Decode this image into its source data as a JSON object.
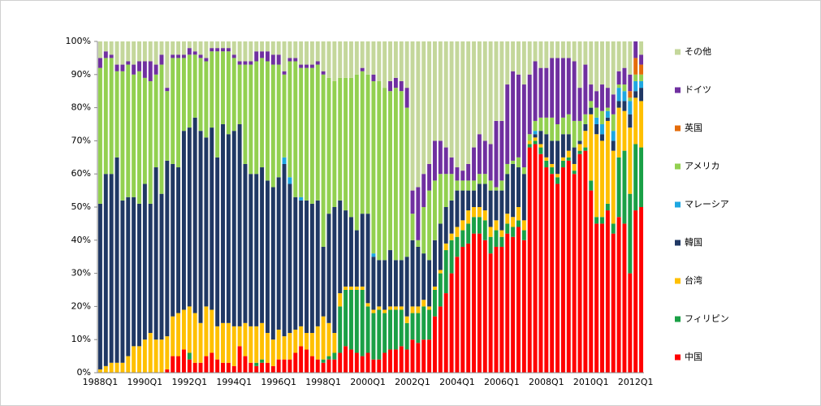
{
  "chart_data": {
    "type": "stacked_bar",
    "categories": [
      "1988Q1",
      null,
      null,
      null,
      null,
      null,
      null,
      null,
      "1990Q1",
      null,
      null,
      null,
      null,
      null,
      null,
      null,
      "1992Q1",
      null,
      null,
      null,
      null,
      null,
      null,
      null,
      "1994Q1",
      null,
      null,
      null,
      null,
      null,
      null,
      null,
      "1996Q1",
      null,
      null,
      null,
      null,
      null,
      null,
      null,
      "1998Q1",
      null,
      null,
      null,
      null,
      null,
      null,
      null,
      "2000Q1",
      null,
      null,
      null,
      null,
      null,
      null,
      null,
      "2002Q1",
      null,
      null,
      null,
      null,
      null,
      null,
      null,
      "2004Q1",
      null,
      null,
      null,
      null,
      null,
      null,
      null,
      "2006Q1",
      null,
      null,
      null,
      null,
      null,
      null,
      null,
      "2008Q1",
      null,
      null,
      null,
      null,
      null,
      null,
      null,
      "2010Q1",
      null,
      null,
      null,
      null,
      null,
      null,
      null,
      "2012Q1",
      null
    ],
    "series": [
      {
        "name": "中国",
        "color": "#ff0000",
        "values": [
          0,
          0,
          0,
          0,
          0,
          0,
          0,
          0,
          0,
          0,
          0,
          0,
          1,
          5,
          5,
          7,
          4,
          3,
          3,
          5,
          6,
          4,
          3,
          3,
          2,
          8,
          5,
          3,
          2,
          3,
          3,
          2,
          4,
          4,
          4,
          6,
          8,
          7,
          5,
          4,
          3,
          4,
          4,
          6,
          8,
          7,
          6,
          5,
          6,
          4,
          4,
          6,
          7,
          7,
          8,
          7,
          10,
          9,
          10,
          10,
          17,
          20,
          24,
          30,
          35,
          38,
          39,
          42,
          42,
          40,
          36,
          38,
          38,
          42,
          41,
          44,
          40,
          68,
          69,
          66,
          62,
          60,
          57,
          62,
          64,
          60,
          66,
          67,
          55,
          45,
          45,
          49,
          42,
          47,
          45,
          30,
          49,
          50
        ]
      },
      {
        "name": "フィリピン",
        "color": "#1aa046",
        "values": [
          0,
          0,
          0,
          0,
          0,
          0,
          0,
          0,
          0,
          0,
          0,
          0,
          0,
          0,
          0,
          0,
          2,
          0,
          0,
          0,
          0,
          0,
          0,
          0,
          0,
          0,
          0,
          0,
          1,
          1,
          0,
          0,
          0,
          0,
          0,
          0,
          0,
          0,
          0,
          0,
          1,
          1,
          2,
          14,
          17,
          18,
          19,
          20,
          14,
          14,
          15,
          12,
          12,
          12,
          11,
          8,
          8,
          9,
          10,
          9,
          8,
          10,
          13,
          10,
          6,
          5,
          6,
          5,
          5,
          6,
          5,
          5,
          3,
          3,
          3,
          2,
          3,
          1,
          1,
          2,
          2,
          2,
          2,
          2,
          1,
          1,
          1,
          1,
          3,
          2,
          2,
          2,
          3,
          18,
          22,
          24,
          20,
          18
        ]
      },
      {
        "name": "台湾",
        "color": "#ffc000",
        "values": [
          1,
          2,
          3,
          3,
          3,
          5,
          8,
          8,
          10,
          12,
          10,
          10,
          10,
          12,
          13,
          12,
          14,
          15,
          12,
          15,
          13,
          10,
          12,
          12,
          12,
          6,
          10,
          11,
          11,
          11,
          9,
          8,
          9,
          7,
          8,
          7,
          6,
          5,
          7,
          10,
          13,
          10,
          6,
          4,
          1,
          1,
          1,
          1,
          1,
          1,
          1,
          1,
          1,
          1,
          1,
          2,
          2,
          2,
          2,
          1,
          1,
          1,
          2,
          2,
          3,
          3,
          4,
          3,
          3,
          3,
          3,
          3,
          2,
          3,
          3,
          4,
          3,
          1,
          1,
          1,
          1,
          1,
          1,
          1,
          2,
          2,
          2,
          5,
          20,
          25,
          23,
          25,
          22,
          15,
          12,
          20,
          14,
          14
        ]
      },
      {
        "name": "韓国",
        "color": "#203864",
        "values": [
          50,
          58,
          57,
          62,
          49,
          48,
          45,
          43,
          47,
          39,
          52,
          44,
          53,
          46,
          44,
          54,
          54,
          59,
          58,
          51,
          55,
          51,
          60,
          57,
          59,
          61,
          48,
          46,
          46,
          47,
          46,
          46,
          46,
          52,
          45,
          40,
          38,
          40,
          39,
          38,
          21,
          33,
          38,
          28,
          23,
          21,
          17,
          22,
          27,
          16,
          14,
          15,
          17,
          14,
          14,
          18,
          20,
          18,
          14,
          14,
          14,
          14,
          11,
          10,
          11,
          9,
          6,
          5,
          7,
          8,
          11,
          9,
          12,
          12,
          16,
          12,
          14,
          0,
          1,
          4,
          7,
          7,
          10,
          7,
          5,
          5,
          1,
          2,
          2,
          3,
          2,
          1,
          3,
          2,
          3,
          4,
          2,
          4
        ]
      },
      {
        "name": "マレーシア",
        "color": "#1ea7e1",
        "values": [
          0,
          0,
          0,
          0,
          0,
          0,
          0,
          0,
          0,
          0,
          0,
          0,
          0,
          0,
          0,
          0,
          0,
          0,
          0,
          0,
          0,
          0,
          0,
          0,
          0,
          0,
          0,
          0,
          0,
          0,
          0,
          0,
          0,
          2,
          2,
          0,
          1,
          0,
          0,
          0,
          0,
          0,
          0,
          0,
          0,
          0,
          0,
          0,
          0,
          1,
          0,
          0,
          0,
          0,
          0,
          0,
          0,
          0,
          0,
          0,
          0,
          0,
          0,
          0,
          0,
          0,
          0,
          0,
          0,
          0,
          0,
          0,
          0,
          0,
          0,
          0,
          0,
          0,
          1,
          0,
          0,
          0,
          0,
          0,
          0,
          0,
          0,
          0,
          0,
          2,
          3,
          2,
          3,
          4,
          3,
          4,
          3,
          2
        ]
      },
      {
        "name": "アメリカ",
        "color": "#92d050",
        "values": [
          41,
          35,
          35,
          26,
          39,
          40,
          37,
          40,
          32,
          37,
          28,
          39,
          21,
          32,
          33,
          22,
          22,
          19,
          22,
          23,
          23,
          32,
          22,
          25,
          22,
          18,
          30,
          33,
          34,
          33,
          36,
          37,
          34,
          25,
          35,
          41,
          39,
          40,
          41,
          41,
          52,
          41,
          38,
          37,
          40,
          42,
          47,
          43,
          42,
          52,
          54,
          52,
          48,
          52,
          51,
          45,
          8,
          2,
          14,
          21,
          18,
          15,
          10,
          8,
          3,
          3,
          3,
          3,
          3,
          3,
          3,
          1,
          3,
          3,
          1,
          3,
          2,
          2,
          3,
          4,
          5,
          7,
          5,
          5,
          6,
          8,
          6,
          3,
          2,
          3,
          4,
          1,
          5,
          1,
          2,
          1,
          2,
          2
        ]
      },
      {
        "name": "英国",
        "color": "#e46c0a",
        "values": [
          0,
          0,
          0,
          0,
          0,
          0,
          0,
          0,
          0,
          0,
          0,
          0,
          0,
          0,
          0,
          0,
          0,
          0,
          0,
          0,
          0,
          0,
          0,
          0,
          0,
          0,
          0,
          0,
          0,
          0,
          0,
          0,
          0,
          0,
          0,
          0,
          0,
          0,
          0,
          0,
          0,
          0,
          0,
          0,
          0,
          0,
          0,
          0,
          0,
          0,
          0,
          0,
          0,
          0,
          0,
          0,
          0,
          0,
          0,
          0,
          0,
          0,
          0,
          0,
          0,
          0,
          0,
          0,
          0,
          0,
          0,
          0,
          0,
          0,
          0,
          0,
          0,
          0,
          0,
          0,
          0,
          0,
          0,
          0,
          0,
          0,
          0,
          0,
          0,
          0,
          0,
          0,
          0,
          0,
          0,
          2,
          5,
          3
        ]
      },
      {
        "name": "ドイツ",
        "color": "#7030a0",
        "values": [
          3,
          2,
          1,
          2,
          2,
          1,
          3,
          3,
          5,
          6,
          3,
          3,
          1,
          1,
          1,
          1,
          2,
          1,
          1,
          1,
          1,
          1,
          1,
          1,
          1,
          1,
          1,
          1,
          3,
          2,
          3,
          3,
          3,
          1,
          1,
          1,
          1,
          1,
          1,
          1,
          1,
          0,
          0,
          0,
          0,
          0,
          0,
          1,
          0,
          2,
          0,
          0,
          3,
          3,
          3,
          6,
          7,
          16,
          10,
          8,
          12,
          10,
          8,
          5,
          4,
          3,
          5,
          10,
          12,
          10,
          11,
          20,
          18,
          24,
          27,
          25,
          25,
          18,
          18,
          15,
          15,
          18,
          20,
          18,
          17,
          18,
          10,
          15,
          5,
          5,
          8,
          6,
          6,
          4,
          5,
          5,
          5,
          3
        ]
      },
      {
        "name": "その他",
        "color": "#c4d79b",
        "values": [
          5,
          3,
          4,
          7,
          7,
          6,
          7,
          6,
          6,
          6,
          7,
          4,
          14,
          4,
          4,
          4,
          2,
          3,
          4,
          5,
          2,
          2,
          2,
          2,
          4,
          6,
          6,
          6,
          3,
          3,
          3,
          4,
          4,
          9,
          5,
          5,
          7,
          7,
          7,
          6,
          9,
          11,
          12,
          11,
          11,
          11,
          10,
          8,
          10,
          10,
          12,
          14,
          12,
          11,
          12,
          14,
          45,
          44,
          40,
          37,
          30,
          30,
          32,
          35,
          38,
          39,
          37,
          32,
          28,
          30,
          31,
          24,
          24,
          13,
          9,
          10,
          13,
          10,
          6,
          8,
          8,
          5,
          5,
          5,
          5,
          6,
          14,
          7,
          13,
          15,
          13,
          14,
          16,
          9,
          8,
          10,
          0,
          4
        ]
      }
    ],
    "ylim": [
      0,
      100
    ],
    "yticks": [
      {
        "value": 0,
        "label": "0%"
      },
      {
        "value": 10,
        "label": "10%"
      },
      {
        "value": 20,
        "label": "20%"
      },
      {
        "value": 30,
        "label": "30%"
      },
      {
        "value": 40,
        "label": "40%"
      },
      {
        "value": 50,
        "label": "50%"
      },
      {
        "value": 60,
        "label": "60%"
      },
      {
        "value": 70,
        "label": "70%"
      },
      {
        "value": 80,
        "label": "80%"
      },
      {
        "value": 90,
        "label": "90%"
      },
      {
        "value": 100,
        "label": "100%"
      }
    ],
    "grid": false,
    "legend": "right"
  }
}
